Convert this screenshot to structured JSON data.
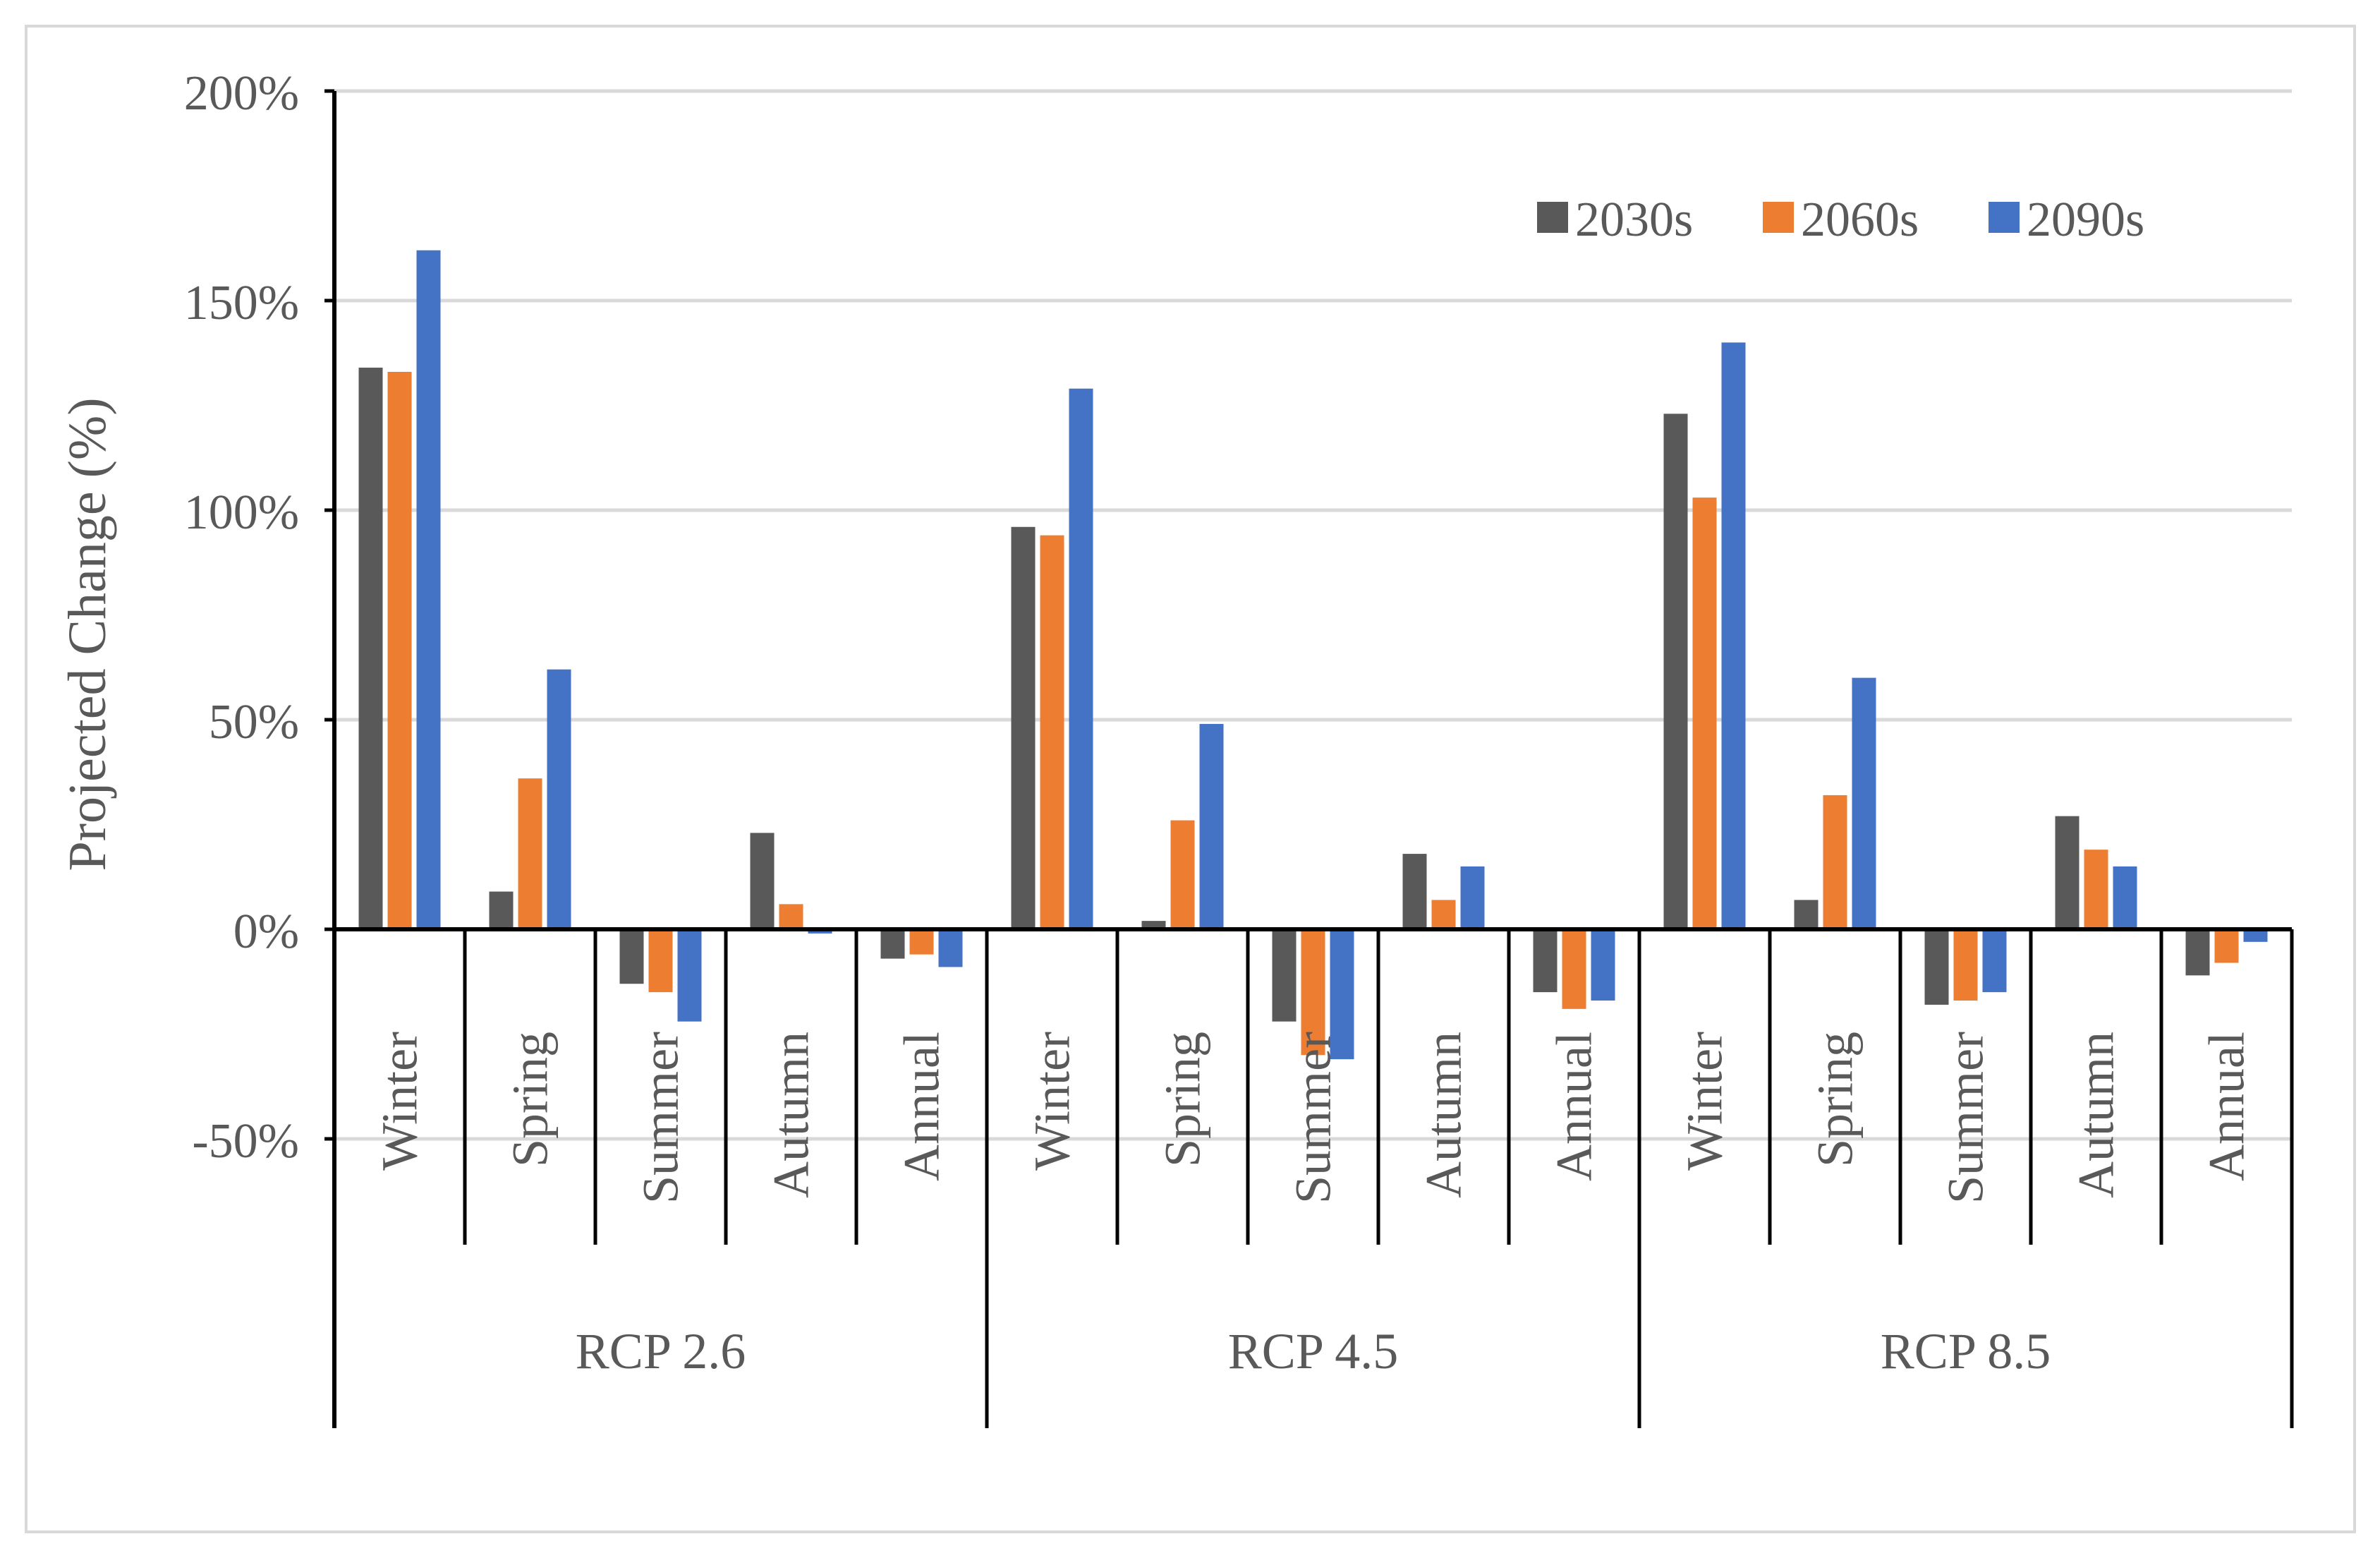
{
  "chart_data": {
    "type": "bar",
    "title": "",
    "xlabel": "",
    "ylabel": "Projected Change (%)",
    "ylim": [
      -50,
      200
    ],
    "yticks": [
      -50,
      0,
      50,
      100,
      150,
      200
    ],
    "ytick_labels": [
      "-50%",
      "0%",
      "50%",
      "100%",
      "150%",
      "200%"
    ],
    "grid": true,
    "legend_position": "top-right",
    "groups": [
      "RCP 2.6",
      "RCP 4.5",
      "RCP 8.5"
    ],
    "categories": [
      "Winter",
      "Spring",
      "Summer",
      "Autumn",
      "Annual"
    ],
    "series": [
      {
        "name": "2030s",
        "color": "#595959",
        "values": [
          [
            134,
            9,
            -13,
            23,
            -7
          ],
          [
            96,
            2,
            -22,
            18,
            -15
          ],
          [
            123,
            7,
            -18,
            27,
            -11
          ]
        ]
      },
      {
        "name": "2060s",
        "color": "#ed7d31",
        "values": [
          [
            133,
            36,
            -15,
            6,
            -6
          ],
          [
            94,
            26,
            -30,
            7,
            -19
          ],
          [
            103,
            32,
            -17,
            19,
            -8
          ]
        ]
      },
      {
        "name": "2090s",
        "color": "#4472c4",
        "values": [
          [
            162,
            62,
            -22,
            -1,
            -9
          ],
          [
            129,
            49,
            -31,
            15,
            -17
          ],
          [
            140,
            60,
            -15,
            15,
            -3
          ]
        ]
      }
    ]
  }
}
